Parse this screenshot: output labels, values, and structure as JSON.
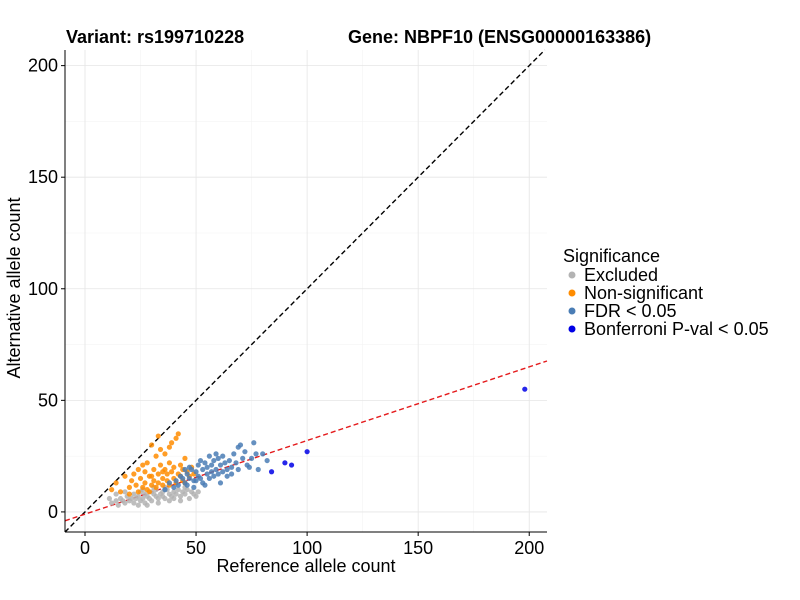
{
  "chart_data": {
    "type": "scatter",
    "title_left": "Variant: rs199710228",
    "title_right": "Gene: NBPF10 (ENSG00000163386)",
    "xlabel": "Reference allele count",
    "ylabel": "Alternative allele count",
    "xlim": [
      -9,
      208
    ],
    "ylim": [
      -9,
      207
    ],
    "x_ticks": [
      "0",
      "50",
      "100",
      "150",
      "200"
    ],
    "y_ticks": [
      "0",
      "50",
      "100",
      "150",
      "200"
    ],
    "grid": true,
    "legend_position": "right",
    "legend_title": "Significance",
    "reference_lines": [
      {
        "name": "identity",
        "slope": 1,
        "intercept": 0,
        "color": "#000000",
        "dash": true
      },
      {
        "name": "fit",
        "slope": 0.33,
        "intercept": -1,
        "color": "#e41a1c",
        "dash": true
      }
    ],
    "series": [
      {
        "name": "Excluded",
        "color": "#b3b3b3",
        "points": [
          [
            12,
            4
          ],
          [
            14,
            5
          ],
          [
            15,
            3
          ],
          [
            16,
            6
          ],
          [
            17,
            5
          ],
          [
            18,
            4
          ],
          [
            19,
            7
          ],
          [
            20,
            5
          ],
          [
            21,
            6
          ],
          [
            22,
            4
          ],
          [
            22,
            8
          ],
          [
            23,
            6
          ],
          [
            24,
            7
          ],
          [
            25,
            5
          ],
          [
            25,
            9
          ],
          [
            26,
            6
          ],
          [
            27,
            8
          ],
          [
            27,
            4
          ],
          [
            28,
            7
          ],
          [
            29,
            6
          ],
          [
            30,
            9
          ],
          [
            30,
            5
          ],
          [
            31,
            8
          ],
          [
            32,
            7
          ],
          [
            32,
            10
          ],
          [
            33,
            6
          ],
          [
            34,
            8
          ],
          [
            35,
            9
          ],
          [
            35,
            7
          ],
          [
            36,
            6
          ],
          [
            37,
            10
          ],
          [
            38,
            8
          ],
          [
            39,
            7
          ],
          [
            40,
            9
          ],
          [
            40,
            6
          ],
          [
            41,
            8
          ],
          [
            42,
            10
          ],
          [
            43,
            7
          ],
          [
            44,
            9
          ],
          [
            45,
            8
          ],
          [
            46,
            10
          ],
          [
            47,
            6
          ],
          [
            48,
            9
          ],
          [
            49,
            8
          ],
          [
            50,
            7
          ],
          [
            28,
            3
          ],
          [
            33,
            4
          ],
          [
            38,
            5
          ],
          [
            43,
            5
          ],
          [
            26,
            10
          ],
          [
            31,
            11
          ],
          [
            36,
            11
          ],
          [
            18,
            9
          ],
          [
            14,
            8
          ],
          [
            11,
            6
          ],
          [
            45,
            11
          ],
          [
            51,
            9
          ],
          [
            24,
            3
          ]
        ]
      },
      {
        "name": "Non-significant",
        "color": "#ff8c00",
        "points": [
          [
            12,
            10
          ],
          [
            14,
            13
          ],
          [
            16,
            9
          ],
          [
            18,
            16
          ],
          [
            20,
            11
          ],
          [
            21,
            14
          ],
          [
            22,
            17
          ],
          [
            23,
            12
          ],
          [
            24,
            9
          ],
          [
            25,
            15
          ],
          [
            26,
            11
          ],
          [
            27,
            18
          ],
          [
            27,
            13
          ],
          [
            28,
            10
          ],
          [
            28,
            22
          ],
          [
            29,
            16
          ],
          [
            30,
            12
          ],
          [
            30,
            30
          ],
          [
            31,
            14
          ],
          [
            31,
            19
          ],
          [
            32,
            11
          ],
          [
            32,
            25
          ],
          [
            33,
            17
          ],
          [
            33,
            13
          ],
          [
            34,
            28
          ],
          [
            34,
            21
          ],
          [
            35,
            15
          ],
          [
            35,
            12
          ],
          [
            36,
            19
          ],
          [
            36,
            26
          ],
          [
            37,
            14
          ],
          [
            37,
            17
          ],
          [
            38,
            22
          ],
          [
            38,
            12
          ],
          [
            39,
            18
          ],
          [
            39,
            31
          ],
          [
            40,
            15
          ],
          [
            40,
            20
          ],
          [
            41,
            33
          ],
          [
            41,
            13
          ],
          [
            42,
            17
          ],
          [
            42,
            35
          ],
          [
            43,
            16
          ],
          [
            43,
            21
          ],
          [
            44,
            14
          ],
          [
            44,
            19
          ],
          [
            45,
            13
          ],
          [
            45,
            24
          ],
          [
            46,
            18
          ],
          [
            47,
            16
          ],
          [
            48,
            20
          ],
          [
            49,
            17
          ],
          [
            33,
            34
          ],
          [
            24,
            19
          ],
          [
            26,
            21
          ],
          [
            29,
            9
          ],
          [
            20,
            8
          ],
          [
            38,
            29
          ],
          [
            30,
            16
          ],
          [
            35,
            18
          ]
        ]
      },
      {
        "name": "FDR < 0.05",
        "color": "#4a7db5",
        "points": [
          [
            36,
            10
          ],
          [
            38,
            13
          ],
          [
            40,
            11
          ],
          [
            41,
            14
          ],
          [
            42,
            12
          ],
          [
            43,
            16
          ],
          [
            44,
            15
          ],
          [
            45,
            13
          ],
          [
            46,
            17
          ],
          [
            46,
            12
          ],
          [
            47,
            15
          ],
          [
            48,
            19
          ],
          [
            49,
            14
          ],
          [
            49,
            11
          ],
          [
            50,
            18
          ],
          [
            51,
            16
          ],
          [
            51,
            21
          ],
          [
            52,
            15
          ],
          [
            53,
            19
          ],
          [
            53,
            13
          ],
          [
            54,
            22
          ],
          [
            55,
            17
          ],
          [
            55,
            20
          ],
          [
            56,
            15
          ],
          [
            57,
            21
          ],
          [
            57,
            18
          ],
          [
            58,
            23
          ],
          [
            58,
            16
          ],
          [
            59,
            19
          ],
          [
            60,
            24
          ],
          [
            60,
            17
          ],
          [
            61,
            21
          ],
          [
            62,
            18
          ],
          [
            62,
            25
          ],
          [
            63,
            22
          ],
          [
            64,
            19
          ],
          [
            65,
            23
          ],
          [
            66,
            20
          ],
          [
            66,
            17
          ],
          [
            67,
            26
          ],
          [
            68,
            22
          ],
          [
            69,
            29
          ],
          [
            69,
            19
          ],
          [
            70,
            30
          ],
          [
            71,
            24
          ],
          [
            72,
            27
          ],
          [
            73,
            21
          ],
          [
            74,
            20
          ],
          [
            75,
            24
          ],
          [
            76,
            31
          ],
          [
            77,
            26
          ],
          [
            78,
            19
          ],
          [
            80,
            26
          ],
          [
            82,
            23
          ],
          [
            47,
            20
          ],
          [
            52,
            23
          ],
          [
            56,
            25
          ],
          [
            61,
            13
          ],
          [
            64,
            16
          ],
          [
            54,
            12
          ],
          [
            50,
            14
          ],
          [
            45,
            19
          ],
          [
            59,
            26
          ]
        ]
      },
      {
        "name": "Bonferroni P-val < 0.05",
        "color": "#0000e6",
        "points": [
          [
            84,
            18
          ],
          [
            90,
            22
          ],
          [
            93,
            21
          ],
          [
            100,
            27
          ],
          [
            198,
            55
          ]
        ]
      }
    ]
  }
}
